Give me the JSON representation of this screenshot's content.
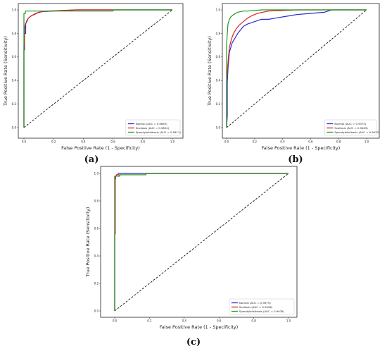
{
  "chart_data": [
    {
      "panel": "(a)",
      "type": "line",
      "xlabel": "False Positive Rate (1 - Specificity)",
      "ylabel": "True Positive Rate (Sensitivity)",
      "xlim": [
        0,
        1
      ],
      "ylim": [
        0,
        1
      ],
      "xticks": [
        "0.0",
        "0.2",
        "0.4",
        "0.6",
        "0.8",
        "1.0"
      ],
      "yticks": [
        "0.0",
        "0.2",
        "0.4",
        "0.6",
        "0.8",
        "1.0"
      ],
      "legend_position": "bottom-right",
      "grid": false,
      "diagonal": true,
      "series": [
        {
          "name": "Normal (AUC = 0.9893)",
          "color": "#2a2ad0",
          "x": [
            0,
            0,
            0.004,
            0.004,
            0.012,
            0.012,
            0.02,
            0.03,
            0.05,
            0.08,
            0.12,
            0.2,
            0.35,
            1.0
          ],
          "y": [
            0,
            0.66,
            0.66,
            0.8,
            0.8,
            0.88,
            0.91,
            0.93,
            0.95,
            0.97,
            0.985,
            0.99,
            1.0,
            1.0
          ]
        },
        {
          "name": "Scoliosis (AUC = 0.9894)",
          "color": "#e02020",
          "x": [
            0,
            0,
            0.004,
            0.004,
            0.01,
            0.02,
            0.03,
            0.05,
            0.07,
            0.1,
            0.15,
            0.25,
            0.35,
            1.0
          ],
          "y": [
            0,
            0.7,
            0.7,
            0.84,
            0.88,
            0.9,
            0.93,
            0.95,
            0.96,
            0.98,
            0.99,
            0.995,
            1.0,
            1.0
          ]
        },
        {
          "name": "Spondylolisthesis (AUC = 0.9911)",
          "color": "#1d9a1d",
          "x": [
            0,
            0,
            0.01,
            0.01,
            0.05,
            0.05,
            0.6,
            0.6,
            1.0
          ],
          "y": [
            0,
            0.97,
            0.97,
            0.99,
            0.99,
            0.99,
            0.99,
            1.0,
            1.0
          ]
        }
      ]
    },
    {
      "panel": "(b)",
      "type": "line",
      "xlabel": "False Positive Rate (1 - Specificity)",
      "ylabel": "True Positive Rate (Sensitivity)",
      "xlim": [
        0,
        1
      ],
      "ylim": [
        0,
        1
      ],
      "xticks": [
        "0.0",
        "0.2",
        "0.4",
        "0.6",
        "0.8",
        "1.0"
      ],
      "yticks": [
        "0.0",
        "0.2",
        "0.4",
        "0.6",
        "0.8",
        "1.0"
      ],
      "legend_position": "bottom-right",
      "grid": false,
      "diagonal": true,
      "series": [
        {
          "name": "Normal (AUC = 0.9375)",
          "color": "#2a2ad0",
          "x": [
            0,
            0.005,
            0.005,
            0.01,
            0.015,
            0.02,
            0.03,
            0.04,
            0.06,
            0.08,
            0.1,
            0.12,
            0.15,
            0.2,
            0.25,
            0.3,
            0.35,
            0.4,
            0.45,
            0.5,
            0.6,
            0.7,
            0.75,
            1.0
          ],
          "y": [
            0,
            0.1,
            0.38,
            0.5,
            0.57,
            0.64,
            0.68,
            0.72,
            0.76,
            0.8,
            0.83,
            0.86,
            0.88,
            0.9,
            0.92,
            0.92,
            0.93,
            0.94,
            0.95,
            0.96,
            0.97,
            0.98,
            1.0,
            1.0
          ]
        },
        {
          "name": "Scoliosis (AUC = 0.9469)",
          "color": "#e02020",
          "x": [
            0,
            0,
            0.01,
            0.015,
            0.02,
            0.03,
            0.04,
            0.05,
            0.07,
            0.09,
            0.12,
            0.15,
            0.18,
            0.22,
            0.26,
            0.3,
            0.4,
            0.5,
            1.0
          ],
          "y": [
            0,
            0.38,
            0.55,
            0.62,
            0.68,
            0.73,
            0.77,
            0.8,
            0.84,
            0.87,
            0.9,
            0.93,
            0.95,
            0.97,
            0.98,
            0.99,
            0.995,
            1.0,
            1.0
          ]
        },
        {
          "name": "Spondylolisthesis (AUC = 0.9933)",
          "color": "#1d9a1d",
          "x": [
            0,
            0,
            0.005,
            0.01,
            0.02,
            0.03,
            0.05,
            0.08,
            0.12,
            0.15,
            0.25,
            1.0
          ],
          "y": [
            0,
            0.7,
            0.8,
            0.88,
            0.92,
            0.94,
            0.96,
            0.98,
            0.99,
            0.99,
            1.0,
            1.0
          ]
        }
      ]
    },
    {
      "panel": "(c)",
      "type": "line",
      "xlabel": "False Positive Rate (1 - Specificity)",
      "ylabel": "True Positive Rate (Sensitivity)",
      "xlim": [
        0,
        1
      ],
      "ylim": [
        0,
        1
      ],
      "xticks": [
        "0.0",
        "0.2",
        "0.4",
        "0.6",
        "0.8",
        "1.0"
      ],
      "yticks": [
        "0.0",
        "0.2",
        "0.4",
        "0.6",
        "0.8",
        "1.0"
      ],
      "legend_position": "bottom-right",
      "grid": false,
      "diagonal": true,
      "series": [
        {
          "name": "Normal (AUC = 0.9979)",
          "color": "#2a2ad0",
          "x": [
            0,
            0,
            0.003,
            0.003,
            0.005,
            0.005,
            0.01,
            0.01,
            0.02,
            0.02,
            1.0
          ],
          "y": [
            0,
            0.56,
            0.56,
            0.96,
            0.96,
            0.98,
            0.98,
            0.99,
            0.99,
            1.0,
            1.0
          ]
        },
        {
          "name": "Scoliosis (AUC = 0.9996)",
          "color": "#e02020",
          "x": [
            0,
            0,
            0.01,
            0.01,
            0.18,
            0.18,
            1.0
          ],
          "y": [
            0,
            0.98,
            0.98,
            0.99,
            0.99,
            1.0,
            1.0
          ]
        },
        {
          "name": "Spondylolisthesis (AUC = 0.9978)",
          "color": "#1d9a1d",
          "x": [
            0,
            0,
            0.003,
            0.003,
            0.03,
            0.03,
            0.18,
            0.18,
            1.0
          ],
          "y": [
            0,
            0.56,
            0.56,
            0.98,
            0.98,
            0.99,
            0.99,
            1.0,
            1.0
          ]
        }
      ]
    }
  ]
}
